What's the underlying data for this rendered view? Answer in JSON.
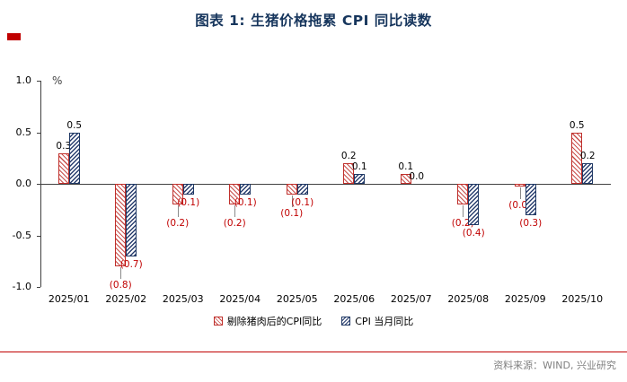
{
  "source_note": "资料来源：WIND, 兴业研究",
  "colors": {
    "title_navy": "#17365D",
    "accent_red": "#C00000",
    "series_red": "#C0302C",
    "series_navy": "#1F3864",
    "negative_label_red": "#C00000",
    "source_gray": "#808080"
  },
  "chart_data": {
    "type": "bar",
    "title": "图表 1: 生猪价格拖累 CPI 同比读数",
    "ylabel": "%",
    "xlabel": "",
    "ylim": [
      -1.0,
      1.0
    ],
    "yticks": [
      "1.0",
      "0.5",
      "0.0",
      "-0.5",
      "-1.0"
    ],
    "grid": false,
    "legend_position": "bottom",
    "categories": [
      "2025/01",
      "2025/02",
      "2025/03",
      "2025/04",
      "2025/05",
      "2025/06",
      "2025/07",
      "2025/08",
      "2025/09",
      "2025/10"
    ],
    "series": [
      {
        "name": "剔除猪肉后的CPI同比",
        "color": "#C0302C",
        "hatch": "diagonal-45",
        "values": [
          0.3,
          -0.8,
          -0.2,
          -0.2,
          -0.1,
          0.2,
          0.1,
          -0.2,
          -0.0,
          0.5
        ],
        "labels": [
          "0.3",
          "(0.8)",
          "(0.2)",
          "(0.2)",
          "(0.1)",
          "0.2",
          "0.1",
          "(0.2)",
          "(0.0)",
          "0.5"
        ]
      },
      {
        "name": "CPI 当月同比",
        "color": "#1F3864",
        "hatch": "diagonal-135",
        "values": [
          0.5,
          -0.7,
          -0.1,
          -0.1,
          -0.1,
          0.1,
          0.0,
          -0.4,
          -0.3,
          0.2
        ],
        "labels": [
          "0.5",
          "(0.7)",
          "(0.1)",
          "(0.1)",
          "(0.1)",
          "0.1",
          "0.0",
          "(0.4)",
          "(0.3)",
          "0.2"
        ]
      }
    ]
  }
}
